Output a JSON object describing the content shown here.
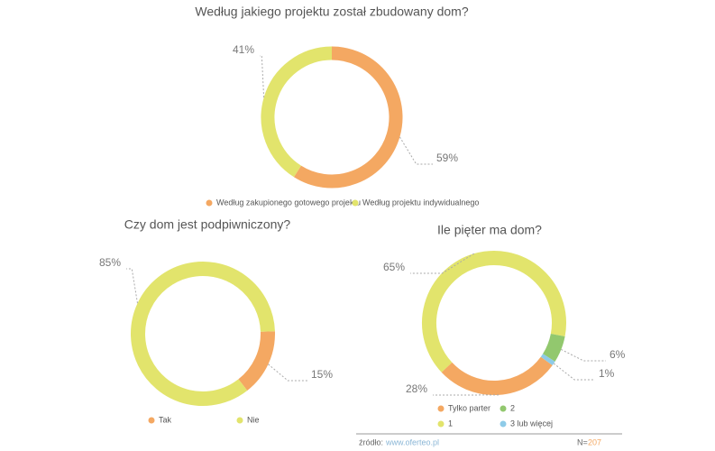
{
  "chart_data": [
    {
      "type": "donut",
      "title": "Według jakiego projektu został zbudowany dom?",
      "categories": [
        "Według zakupionego gotowego projektu",
        "Według projektu indywidualnego"
      ],
      "values": [
        59,
        41
      ],
      "value_labels": [
        "59%",
        "41%"
      ],
      "colors": [
        "#f4a862",
        "#e2e46c"
      ]
    },
    {
      "type": "donut",
      "title": "Czy dom jest podpiwniczony?",
      "categories": [
        "Tak",
        "Nie"
      ],
      "values": [
        15,
        85
      ],
      "value_labels": [
        "15%",
        "85%"
      ],
      "colors": [
        "#f4a862",
        "#e2e46c"
      ]
    },
    {
      "type": "donut",
      "title": "Ile pięter ma dom?",
      "categories": [
        "Tylko parter",
        "1",
        "2",
        "3 lub więcej"
      ],
      "values": [
        28,
        65,
        6,
        1
      ],
      "value_labels": [
        "28%",
        "65%",
        "6%",
        "1%"
      ],
      "colors": [
        "#f4a862",
        "#e2e46c",
        "#92c86e",
        "#8ecbe8"
      ]
    }
  ],
  "footer": {
    "source_label": "źródło:",
    "source": "www.oferteo.pl",
    "n_label": "N=",
    "n": "207"
  }
}
